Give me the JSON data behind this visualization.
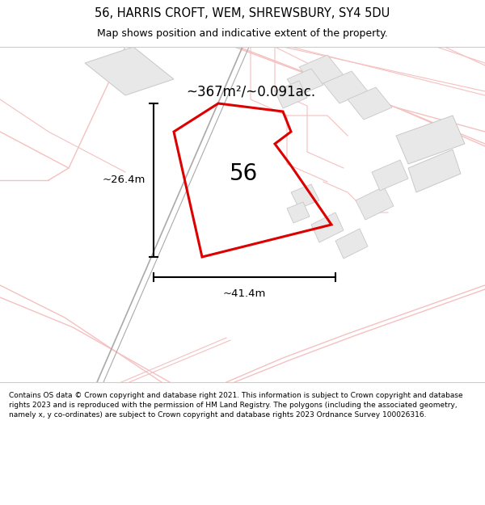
{
  "title_line1": "56, HARRIS CROFT, WEM, SHREWSBURY, SY4 5DU",
  "title_line2": "Map shows position and indicative extent of the property.",
  "area_label": "~367m²/~0.091ac.",
  "number_label": "56",
  "width_label": "~41.4m",
  "height_label": "~26.4m",
  "footer_text": "Contains OS data © Crown copyright and database right 2021. This information is subject to Crown copyright and database rights 2023 and is reproduced with the permission of HM Land Registry. The polygons (including the associated geometry, namely x, y co-ordinates) are subject to Crown copyright and database rights 2023 Ordnance Survey 100026316.",
  "light_pink": "#f5c0c0",
  "dark_gray": "#888888",
  "building_fill": "#e8e8e8",
  "building_edge": "#c8c8c8",
  "red_poly_color": "#dd0000",
  "title_bg": "#f2f2f2",
  "map_bg": "#ffffff",
  "footer_bg": "#ffffff"
}
